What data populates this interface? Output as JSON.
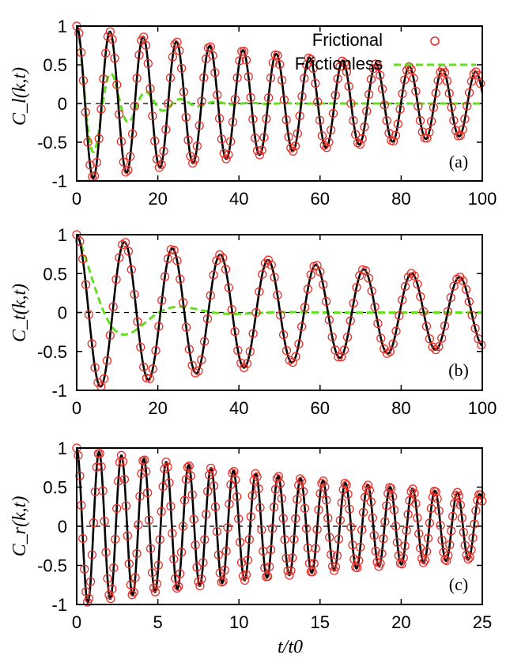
{
  "colors": {
    "frictional_marker": "#e8302a",
    "frictionless_line": "#66dd22",
    "theory_line": "#000000",
    "zero_line": "#000000",
    "frame": "#000000"
  },
  "legend": {
    "frictional": "Frictional",
    "frictionless": "Frictionless"
  },
  "xlabel": "t/t0",
  "chart_data": [
    {
      "type": "line",
      "panel": "(a)",
      "ylabel": "C_l(k,t)",
      "xlim": [
        0,
        100
      ],
      "ylim": [
        -1,
        1
      ],
      "xticks": [
        "0",
        "20",
        "40",
        "60",
        "80",
        "100"
      ],
      "yticks": [
        "1",
        "0.5",
        "0",
        "-0.5",
        "-1"
      ],
      "frictional": {
        "name": "Frictional",
        "amp0": 1,
        "decay_time": 110,
        "period": 8.2,
        "marker_step": 0.55
      },
      "frictionless": {
        "name": "Frictionless",
        "amp0": 1,
        "decay_time": 9,
        "period": 8.6,
        "x_end": 100
      }
    },
    {
      "type": "line",
      "panel": "(b)",
      "ylabel": "C_t(k,t)",
      "xlim": [
        0,
        100
      ],
      "ylim": [
        -1,
        1
      ],
      "xticks": [
        "0",
        "20",
        "40",
        "60",
        "80",
        "100"
      ],
      "yticks": [
        "1",
        "0.5",
        "0",
        "-0.5",
        "-1"
      ],
      "frictional": {
        "name": "Frictional",
        "amp0": 1,
        "decay_time": 120,
        "period": 11.8,
        "marker_step": 0.75
      },
      "frictionless": {
        "name": "Frictionless",
        "amp0": 1,
        "decay_time": 10,
        "period": 27,
        "x_end": 100
      }
    },
    {
      "type": "line",
      "panel": "(c)",
      "ylabel": "C_r(k,t)",
      "xlim": [
        0,
        25
      ],
      "ylim": [
        -1,
        1
      ],
      "xticks": [
        "0",
        "5",
        "10",
        "15",
        "20",
        "25"
      ],
      "yticks": [
        "1",
        "0.5",
        "0",
        "-0.5",
        "-1"
      ],
      "frictional": {
        "name": "Frictional",
        "amp0": 1,
        "decay_time": 28,
        "period": 1.38,
        "marker_step": 0.095
      }
    }
  ]
}
